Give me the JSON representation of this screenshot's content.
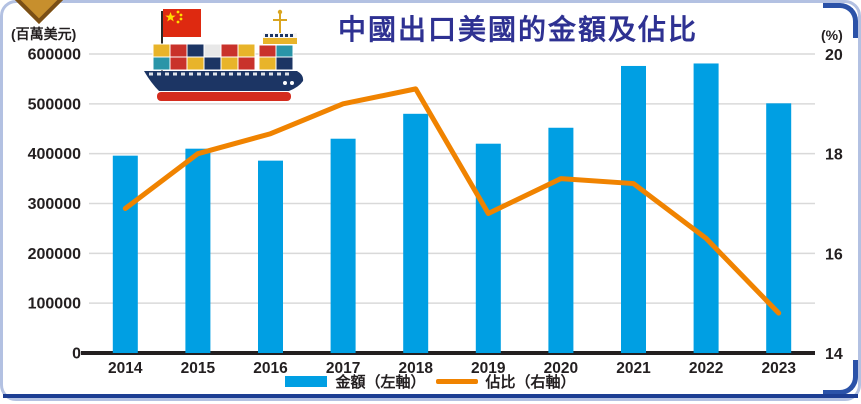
{
  "card": {
    "title": "中國出口美國的金額及佔比"
  },
  "icons": {
    "ship": "cargo-ship-with-china-flag-icon",
    "ornament": "gold-diamond-ornament"
  },
  "colors": {
    "bar": "#009fe3",
    "line": "#f08300",
    "title_text": "#2e3192",
    "axis_text": "#231f20",
    "gridline": "#d9d9d9",
    "axis_line": "#231f20",
    "frame_border": "#b3c1e2",
    "frame_accent": "#2b52a8",
    "bottom_bar": "#1d3e93"
  },
  "chart_data": {
    "type": "bar+line",
    "title": "中國出口美國的金額及佔比",
    "categories": [
      "2014",
      "2015",
      "2016",
      "2017",
      "2018",
      "2019",
      "2020",
      "2021",
      "2022",
      "2023"
    ],
    "series": [
      {
        "name": "金額（左軸）",
        "type": "bar",
        "axis": "left",
        "color": "#009fe3",
        "values": [
          396000,
          410000,
          386000,
          430000,
          480000,
          420000,
          452000,
          576000,
          581000,
          501000
        ]
      },
      {
        "name": "佔比（右軸）",
        "type": "line",
        "axis": "right",
        "color": "#f08300",
        "values": [
          16.9,
          18.0,
          18.4,
          19.0,
          19.3,
          16.8,
          17.5,
          17.4,
          16.3,
          14.8
        ]
      }
    ],
    "left_axis": {
      "unit_label": "(百萬美元)",
      "min": 0,
      "max": 600000,
      "tick_step": 100000,
      "tick_labels": [
        "600000",
        "500000",
        "400000",
        "300000",
        "200000",
        "100000",
        "0"
      ]
    },
    "right_axis": {
      "unit_label": "(%)",
      "min": 14,
      "max": 20,
      "tick_labels": [
        "20",
        "18",
        "16",
        "14"
      ]
    },
    "grid": "horizontal light-gray lines every 100000 (left) / 1% (right)",
    "legend_position": "bottom-center"
  }
}
